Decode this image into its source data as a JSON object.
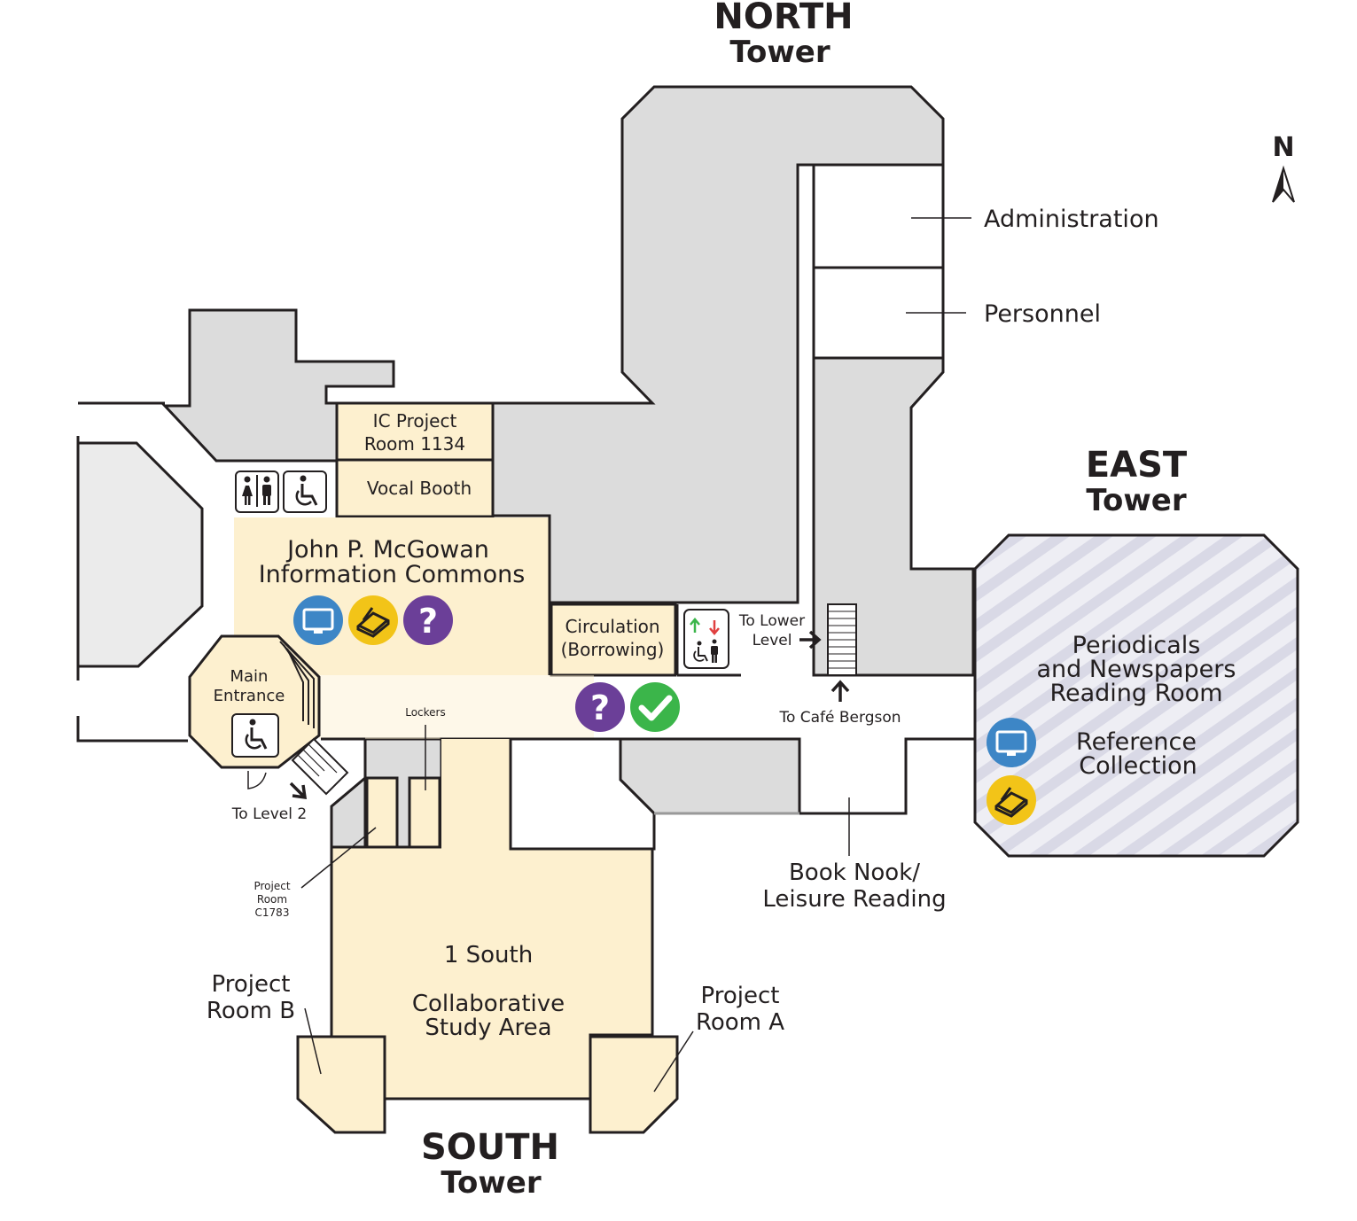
{
  "towers": {
    "north": {
      "line1": "NORTH",
      "line2": "Tower"
    },
    "east": {
      "line1": "EAST",
      "line2": "Tower"
    },
    "south": {
      "line1": "SOUTH",
      "line2": "Tower"
    }
  },
  "compass": {
    "label": "N"
  },
  "rooms": {
    "administration": "Administration",
    "personnel": "Personnel",
    "ic_project_room": {
      "line1": "IC Project",
      "line2": "Room 1134"
    },
    "vocal_booth": "Vocal Booth",
    "information_commons": {
      "line1": "John P. McGowan",
      "line2": "Information Commons"
    },
    "circulation": {
      "line1": "Circulation",
      "line2": "(Borrowing)"
    },
    "main_entrance": {
      "line1": "Main",
      "line2": "Entrance"
    },
    "lockers": "Lockers",
    "periodicals": {
      "line1": "Periodicals",
      "line2": "and Newspapers",
      "line3": "Reading Room"
    },
    "reference": {
      "line1": "Reference",
      "line2": "Collection"
    },
    "book_nook": {
      "line1": "Book Nook/",
      "line2": "Leisure Reading"
    },
    "project_room_c1783": {
      "line1": "Project",
      "line2": "Room",
      "line3": "C1783"
    },
    "one_south": {
      "line1": "1 South",
      "line2": "Collaborative",
      "line3": "Study Area"
    },
    "project_room_b": {
      "line1": "Project",
      "line2": "Room B"
    },
    "project_room_a": {
      "line1": "Project",
      "line2": "Room A"
    }
  },
  "directions": {
    "to_lower_level": {
      "line1": "To Lower",
      "line2": "Level"
    },
    "to_cafe": "To Café Bergson",
    "to_level_2": "To Level 2"
  },
  "icons": [
    "computer-icon",
    "scanner-icon",
    "help-icon",
    "checkout-icon",
    "restroom-icon",
    "accessible-icon",
    "elevator-icon"
  ],
  "colors": {
    "room_fill": "#fdf0cf",
    "building_gray": "#dcdcdc",
    "computer_blue": "#3d86c6",
    "scanner_yellow": "#f2c418",
    "help_purple": "#6b3f98",
    "check_green": "#3bb54a",
    "periodicals_stripe": "#dcdcea"
  }
}
